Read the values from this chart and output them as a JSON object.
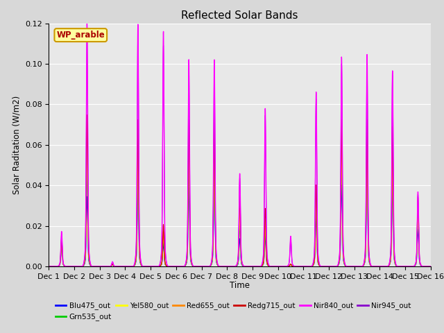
{
  "title": "Reflected Solar Bands",
  "xlabel": "Time",
  "ylabel": "Solar Raditation (W/m2)",
  "xlim": [
    0,
    15
  ],
  "ylim": [
    0,
    0.12
  ],
  "yticks": [
    0.0,
    0.02,
    0.04,
    0.06,
    0.08,
    0.1,
    0.12
  ],
  "xtick_labels": [
    "Dec 1",
    "Dec 2",
    "Dec 3",
    "Dec 4",
    "Dec 5",
    "Dec 6",
    "Dec 7",
    "Dec 8",
    "Dec 9",
    "Dec 10",
    "Dec 11",
    "Dec 12",
    "Dec 13",
    "Dec 14",
    "Dec 15",
    "Dec 16"
  ],
  "series": {
    "Blu475_out": {
      "color": "#0000ff",
      "linewidth": 0.8
    },
    "Grn535_out": {
      "color": "#00cc00",
      "linewidth": 0.8
    },
    "Yel580_out": {
      "color": "#ffff00",
      "linewidth": 0.8
    },
    "Red655_out": {
      "color": "#ff8800",
      "linewidth": 0.8
    },
    "Redg715_out": {
      "color": "#cc0000",
      "linewidth": 0.8
    },
    "Nir840_out": {
      "color": "#ff00ff",
      "linewidth": 1.0
    },
    "Nir945_out": {
      "color": "#8800cc",
      "linewidth": 0.8
    }
  },
  "annotation_text": "WP_arable",
  "fig_bg": "#d8d8d8",
  "axes_bg": "#e8e8e8",
  "nir840_peaks": [
    0.015,
    0.105,
    0.002,
    0.104,
    0.101,
    0.089,
    0.089,
    0.04,
    0.068,
    0.013,
    0.075,
    0.09,
    0.091,
    0.084,
    0.032
  ],
  "nir945_peaks": [
    0.014,
    0.1,
    0.002,
    0.1,
    0.095,
    0.085,
    0.085,
    0.038,
    0.065,
    0.012,
    0.072,
    0.087,
    0.087,
    0.082,
    0.031
  ],
  "redg715_peaks": [
    0.012,
    0.065,
    0.001,
    0.063,
    0.018,
    0.063,
    0.063,
    0.033,
    0.025,
    0.001,
    0.035,
    0.063,
    0.063,
    0.06,
    0.03
  ],
  "red655_peaks": [
    0.01,
    0.055,
    0.001,
    0.055,
    0.015,
    0.055,
    0.055,
    0.025,
    0.02,
    0.001,
    0.03,
    0.055,
    0.055,
    0.05,
    0.025
  ],
  "yel580_peaks": [
    0.01,
    0.05,
    0.001,
    0.048,
    0.014,
    0.05,
    0.05,
    0.022,
    0.018,
    0.001,
    0.028,
    0.05,
    0.05,
    0.045,
    0.023
  ],
  "grn535_peaks": [
    0.009,
    0.043,
    0.001,
    0.042,
    0.013,
    0.043,
    0.043,
    0.018,
    0.016,
    0.001,
    0.025,
    0.045,
    0.045,
    0.04,
    0.02
  ],
  "blu475_peaks": [
    0.008,
    0.03,
    0.001,
    0.034,
    0.01,
    0.034,
    0.035,
    0.012,
    0.013,
    0.001,
    0.022,
    0.035,
    0.037,
    0.033,
    0.016
  ],
  "sigma_narrow": 0.025,
  "sigma_wide": 0.06,
  "n_per_day": 200
}
